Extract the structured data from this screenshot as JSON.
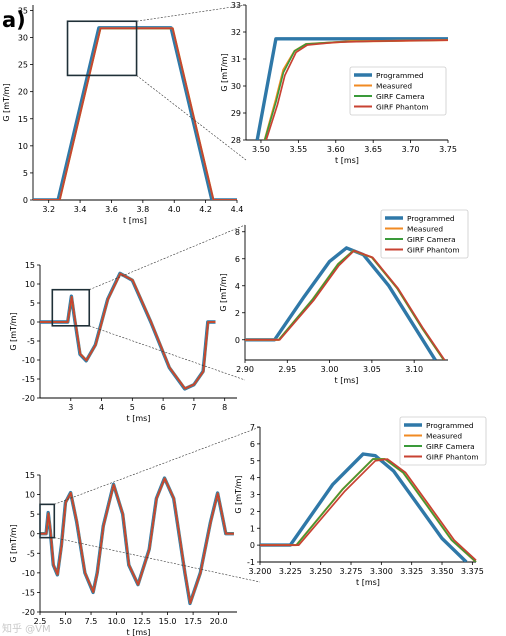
{
  "panel_label": "a)",
  "watermark": "知乎 @VM",
  "colors": {
    "programmed": "#2f78a8",
    "measured": "#f08a22",
    "girf_camera": "#3a9a3a",
    "girf_phantom": "#c84232",
    "zoom_box": "#1f3038"
  },
  "chart_data": [
    {
      "id": "r1_main",
      "type": "line",
      "xlabel": "t [ms]",
      "ylabel": "G [mT/m]",
      "xlim": [
        3.1,
        4.4
      ],
      "ylim": [
        0,
        36
      ],
      "xticks": [
        3.2,
        3.4,
        3.6,
        3.8,
        4.0,
        4.2,
        4.4
      ],
      "xtick_labels": [
        "3.2",
        "3.4",
        "3.6",
        "3.8",
        "4.0",
        "4.2",
        "4.4"
      ],
      "yticks": [
        0,
        5,
        10,
        15,
        20,
        25,
        30,
        35
      ],
      "ytick_labels": [
        "0",
        "5",
        "10",
        "15",
        "20",
        "25",
        "30",
        "35"
      ],
      "zoom_box": {
        "x": [
          3.32,
          3.76
        ],
        "y": [
          23,
          33
        ]
      },
      "series": [
        {
          "key": "programmed",
          "x": [
            3.1,
            3.26,
            3.52,
            3.98,
            4.24,
            4.4
          ],
          "y": [
            0,
            0,
            31.8,
            31.8,
            0,
            0
          ]
        },
        {
          "key": "measured",
          "x": [
            3.1,
            3.27,
            3.53,
            3.99,
            4.25,
            4.4
          ],
          "y": [
            0,
            0,
            31.7,
            31.7,
            0,
            0
          ]
        },
        {
          "key": "girf_camera",
          "x": [
            3.1,
            3.27,
            3.53,
            3.99,
            4.25,
            4.4
          ],
          "y": [
            0,
            0,
            31.7,
            31.7,
            0,
            0
          ]
        },
        {
          "key": "girf_phantom",
          "x": [
            3.1,
            3.27,
            3.53,
            3.99,
            4.25,
            4.4
          ],
          "y": [
            0,
            0,
            31.7,
            31.7,
            0,
            0
          ]
        }
      ]
    },
    {
      "id": "r1_zoom",
      "type": "line",
      "xlabel": "t [ms]",
      "ylabel": "G [mT/m]",
      "xlim": [
        3.48,
        3.75
      ],
      "ylim": [
        28,
        33
      ],
      "xticks": [
        3.5,
        3.55,
        3.6,
        3.65,
        3.7,
        3.75
      ],
      "xtick_labels": [
        "3.50",
        "3.55",
        "3.60",
        "3.65",
        "3.70",
        "3.75"
      ],
      "yticks": [
        28,
        29,
        30,
        31,
        32,
        33
      ],
      "ytick_labels": [
        "28",
        "29",
        "30",
        "31",
        "32",
        "33"
      ],
      "legend": {
        "position": "center-right",
        "labels": [
          "Programmed",
          "Measured",
          "GIRF Camera",
          "GIRF Phantom"
        ]
      },
      "series": [
        {
          "key": "programmed",
          "x": [
            3.495,
            3.52,
            3.75
          ],
          "y": [
            28,
            31.75,
            31.75
          ]
        },
        {
          "key": "measured",
          "x": [
            3.505,
            3.52,
            3.53,
            3.545,
            3.56,
            3.6,
            3.62,
            3.65,
            3.75
          ],
          "y": [
            28,
            29.5,
            30.6,
            31.3,
            31.55,
            31.62,
            31.66,
            31.66,
            31.7
          ]
        },
        {
          "key": "girf_camera",
          "x": [
            3.505,
            3.52,
            3.53,
            3.545,
            3.56,
            3.6,
            3.65,
            3.75
          ],
          "y": [
            28,
            29.4,
            30.5,
            31.3,
            31.55,
            31.63,
            31.66,
            31.7
          ]
        },
        {
          "key": "girf_phantom",
          "x": [
            3.507,
            3.522,
            3.532,
            3.547,
            3.562,
            3.6,
            3.65,
            3.75
          ],
          "y": [
            28,
            29.3,
            30.4,
            31.25,
            31.52,
            31.62,
            31.66,
            31.7
          ]
        }
      ]
    },
    {
      "id": "r2_main",
      "type": "line",
      "xlabel": "t [ms]",
      "ylabel": "G [mT/m]",
      "xlim": [
        2,
        8.4
      ],
      "ylim": [
        -20,
        15
      ],
      "xticks": [
        3,
        4,
        5,
        6,
        7,
        8
      ],
      "xtick_labels": [
        "3",
        "4",
        "5",
        "6",
        "7",
        "8"
      ],
      "yticks": [
        -20,
        -15,
        -10,
        -5,
        0,
        5,
        10,
        15
      ],
      "ytick_labels": [
        "-20",
        "-15",
        "-10",
        "-5",
        "0",
        "5",
        "10",
        "15"
      ],
      "zoom_box": {
        "x": [
          2.4,
          3.6
        ],
        "y": [
          -1,
          8.5
        ]
      },
      "series": [
        {
          "key": "programmed",
          "x": [
            2,
            2.9,
            3.02,
            3.12,
            3.3,
            3.5,
            3.8,
            4.2,
            4.6,
            5.0,
            5.6,
            6.2,
            6.7,
            7.0,
            7.3,
            7.45,
            7.55,
            7.7
          ],
          "y": [
            0,
            0,
            6.8,
            1,
            -8.5,
            -10.2,
            -6,
            6,
            12.8,
            11,
            0,
            -12,
            -17.6,
            -16.5,
            -13,
            0,
            0,
            0
          ]
        },
        {
          "key": "measured",
          "x": [
            2,
            2.9,
            3.03,
            3.13,
            3.31,
            3.51,
            3.81,
            4.21,
            4.61,
            5.01,
            5.61,
            6.21,
            6.71,
            7.01,
            7.31,
            7.46,
            7.56,
            7.7
          ],
          "y": [
            0,
            0,
            6.6,
            1,
            -8.4,
            -10.1,
            -6,
            6,
            12.7,
            11,
            0,
            -12,
            -17.5,
            -16.4,
            -13,
            0,
            0,
            0
          ]
        },
        {
          "key": "girf_camera",
          "x": [
            2,
            2.9,
            3.03,
            3.13,
            3.31,
            3.51,
            3.81,
            4.21,
            4.61,
            5.01,
            5.61,
            6.21,
            6.71,
            7.01,
            7.31,
            7.46,
            7.56,
            7.7
          ],
          "y": [
            0,
            0,
            6.6,
            1,
            -8.4,
            -10.1,
            -6,
            6,
            12.7,
            11,
            0,
            -12,
            -17.5,
            -16.4,
            -13,
            0,
            0,
            0
          ]
        },
        {
          "key": "girf_phantom",
          "x": [
            2,
            2.9,
            3.03,
            3.13,
            3.31,
            3.51,
            3.81,
            4.21,
            4.61,
            5.01,
            5.61,
            6.21,
            6.71,
            7.01,
            7.31,
            7.46,
            7.56,
            7.7
          ],
          "y": [
            0,
            0,
            6.6,
            1,
            -8.4,
            -10.1,
            -6,
            6,
            12.7,
            11,
            0,
            -12,
            -17.5,
            -16.4,
            -13,
            0,
            0,
            0
          ]
        }
      ]
    },
    {
      "id": "r2_zoom",
      "type": "line",
      "xlabel": "t [ms]",
      "ylabel": "G [mT/m]",
      "xlim": [
        2.9,
        3.14
      ],
      "ylim": [
        -1.5,
        8.5
      ],
      "xticks": [
        2.9,
        2.95,
        3.0,
        3.05,
        3.1
      ],
      "xtick_labels": [
        "2.90",
        "2.95",
        "3.00",
        "3.05",
        "3.10"
      ],
      "yticks": [
        0,
        2,
        4,
        6,
        8
      ],
      "ytick_labels": [
        "0",
        "2",
        "4",
        "6",
        "8"
      ],
      "legend": {
        "position": "top-right",
        "labels": [
          "Programmed",
          "Measured",
          "GIRF Camera",
          "GIRF Phantom"
        ]
      },
      "series": [
        {
          "key": "programmed",
          "x": [
            2.9,
            2.935,
            2.97,
            3.0,
            3.02,
            3.04,
            3.07,
            3.1,
            3.125
          ],
          "y": [
            0,
            0,
            3.2,
            5.8,
            6.8,
            6.3,
            4.0,
            1.0,
            -1.5
          ]
        },
        {
          "key": "measured",
          "x": [
            2.9,
            2.94,
            2.98,
            3.01,
            3.028,
            3.05,
            3.08,
            3.11,
            3.135
          ],
          "y": [
            0,
            0,
            3.0,
            5.6,
            6.6,
            6.1,
            3.8,
            0.8,
            -1.5
          ]
        },
        {
          "key": "girf_camera",
          "x": [
            2.9,
            2.94,
            2.98,
            3.01,
            3.028,
            3.05,
            3.08,
            3.11,
            3.135
          ],
          "y": [
            0,
            0,
            3.0,
            5.6,
            6.6,
            6.1,
            3.8,
            0.8,
            -1.5
          ]
        },
        {
          "key": "girf_phantom",
          "x": [
            2.9,
            2.941,
            2.981,
            3.011,
            3.029,
            3.051,
            3.081,
            3.111,
            3.136
          ],
          "y": [
            0,
            0,
            2.9,
            5.5,
            6.6,
            6.1,
            3.8,
            0.8,
            -1.5
          ]
        }
      ]
    },
    {
      "id": "r3_main",
      "type": "line",
      "xlabel": "t [ms]",
      "ylabel": "G [mT/m]",
      "xlim": [
        2.5,
        21.8
      ],
      "ylim": [
        -20,
        15
      ],
      "xticks": [
        2.5,
        5.0,
        7.5,
        10.0,
        12.5,
        15.0,
        17.5,
        20.0
      ],
      "xtick_labels": [
        "2.5",
        "5.0",
        "7.5",
        "10.0",
        "12.5",
        "15.0",
        "17.5",
        "20.0"
      ],
      "yticks": [
        -20,
        -15,
        -10,
        -5,
        0,
        5,
        10,
        15
      ],
      "ytick_labels": [
        "-20",
        "-15",
        "-10",
        "-5",
        "0",
        "5",
        "10",
        "15"
      ],
      "zoom_box": {
        "x": [
          2.5,
          3.9
        ],
        "y": [
          -1,
          7.5
        ]
      },
      "series": [
        {
          "key": "programmed",
          "x": [
            2.5,
            3.1,
            3.3,
            3.5,
            3.8,
            4.2,
            4.6,
            5.0,
            5.5,
            6.1,
            6.9,
            7.7,
            8.1,
            8.7,
            9.7,
            10.6,
            11.2,
            12.1,
            13.2,
            13.9,
            14.7,
            15.6,
            16.7,
            17.2,
            18.2,
            19.2,
            19.9,
            20.4,
            20.7,
            21.0,
            21.5
          ],
          "y": [
            0,
            0,
            5.4,
            1,
            -8,
            -10.5,
            -3,
            8,
            10.5,
            3,
            -10,
            -15,
            -10,
            2,
            12.6,
            5,
            -8,
            -13,
            -4,
            9,
            14.2,
            9,
            -10,
            -17.8,
            -10,
            3,
            10.4,
            4,
            0,
            0,
            0
          ]
        },
        {
          "key": "measured",
          "x": [
            2.5,
            3.12,
            3.32,
            3.52,
            3.82,
            4.22,
            4.62,
            5.02,
            5.52,
            6.12,
            6.92,
            7.72,
            8.12,
            8.72,
            9.72,
            10.62,
            11.22,
            12.12,
            13.22,
            13.92,
            14.72,
            15.62,
            16.72,
            17.22,
            18.22,
            19.22,
            19.92,
            20.42,
            20.72,
            21.0,
            21.5
          ],
          "y": [
            0,
            0,
            5.2,
            1,
            -8,
            -10.4,
            -3,
            8,
            10.4,
            3,
            -10,
            -14.9,
            -10,
            2,
            12.5,
            5,
            -8,
            -13,
            -4,
            9,
            14.1,
            9,
            -10,
            -17.7,
            -10,
            3,
            10.3,
            4,
            0,
            0,
            0
          ]
        },
        {
          "key": "girf_camera",
          "x": [
            2.5,
            3.12,
            3.32,
            3.52,
            3.82,
            4.22,
            4.62,
            5.02,
            5.52,
            6.12,
            6.92,
            7.72,
            8.12,
            8.72,
            9.72,
            10.62,
            11.22,
            12.12,
            13.22,
            13.92,
            14.72,
            15.62,
            16.72,
            17.22,
            18.22,
            19.22,
            19.92,
            20.42,
            20.72,
            21.0,
            21.5
          ],
          "y": [
            0,
            0,
            5.2,
            1,
            -8,
            -10.4,
            -3,
            8,
            10.4,
            3,
            -10,
            -14.9,
            -10,
            2,
            12.5,
            5,
            -8,
            -13,
            -4,
            9,
            14.1,
            9,
            -10,
            -17.7,
            -10,
            3,
            10.3,
            4,
            0,
            0,
            0
          ]
        },
        {
          "key": "girf_phantom",
          "x": [
            2.5,
            3.12,
            3.32,
            3.52,
            3.82,
            4.22,
            4.62,
            5.02,
            5.52,
            6.12,
            6.92,
            7.72,
            8.12,
            8.72,
            9.72,
            10.62,
            11.22,
            12.12,
            13.22,
            13.92,
            14.72,
            15.62,
            16.72,
            17.22,
            18.22,
            19.22,
            19.92,
            20.42,
            20.72,
            21.0,
            21.5
          ],
          "y": [
            0,
            0,
            5.2,
            1,
            -8,
            -10.4,
            -3,
            8,
            10.4,
            3,
            -10,
            -14.9,
            -10,
            2,
            12.5,
            5,
            -8,
            -13,
            -4,
            9,
            14.1,
            9,
            -10,
            -17.7,
            -10,
            3,
            10.3,
            4,
            0,
            0,
            0
          ]
        }
      ]
    },
    {
      "id": "r3_zoom",
      "type": "line",
      "xlabel": "t [ms]",
      "ylabel": "G [mT/m]",
      "xlim": [
        3.2,
        3.378
      ],
      "ylim": [
        -1,
        7
      ],
      "xticks": [
        3.2,
        3.225,
        3.25,
        3.275,
        3.3,
        3.325,
        3.35,
        3.375
      ],
      "xtick_labels": [
        "3.200",
        "3.225",
        "3.250",
        "3.275",
        "3.300",
        "3.325",
        "3.350",
        "3.375"
      ],
      "yticks": [
        -1,
        0,
        1,
        2,
        3,
        4,
        5,
        6,
        7
      ],
      "ytick_labels": [
        "-1",
        "0",
        "1",
        "2",
        "3",
        "4",
        "5",
        "6",
        "7"
      ],
      "legend": {
        "position": "top-right",
        "labels": [
          "Programmed",
          "Measured",
          "GIRF Camera",
          "GIRF Phantom"
        ]
      },
      "series": [
        {
          "key": "programmed",
          "x": [
            3.2,
            3.225,
            3.26,
            3.285,
            3.295,
            3.31,
            3.33,
            3.35,
            3.37
          ],
          "y": [
            0,
            0,
            3.6,
            5.4,
            5.3,
            4.4,
            2.4,
            0.4,
            -1
          ]
        },
        {
          "key": "measured",
          "x": [
            3.2,
            3.23,
            3.268,
            3.293,
            3.303,
            3.318,
            3.338,
            3.358,
            3.378
          ],
          "y": [
            0,
            0,
            3.3,
            5.1,
            5.1,
            4.3,
            2.3,
            0.3,
            -1
          ]
        },
        {
          "key": "girf_camera",
          "x": [
            3.2,
            3.23,
            3.268,
            3.293,
            3.303,
            3.318,
            3.338,
            3.358,
            3.378
          ],
          "y": [
            0,
            0,
            3.3,
            5.1,
            5.1,
            4.3,
            2.3,
            0.3,
            -1
          ]
        },
        {
          "key": "girf_phantom",
          "x": [
            3.2,
            3.232,
            3.27,
            3.295,
            3.305,
            3.32,
            3.34,
            3.36,
            3.378
          ],
          "y": [
            0,
            0,
            3.2,
            5.0,
            5.1,
            4.3,
            2.3,
            0.3,
            -0.9
          ]
        }
      ]
    }
  ]
}
